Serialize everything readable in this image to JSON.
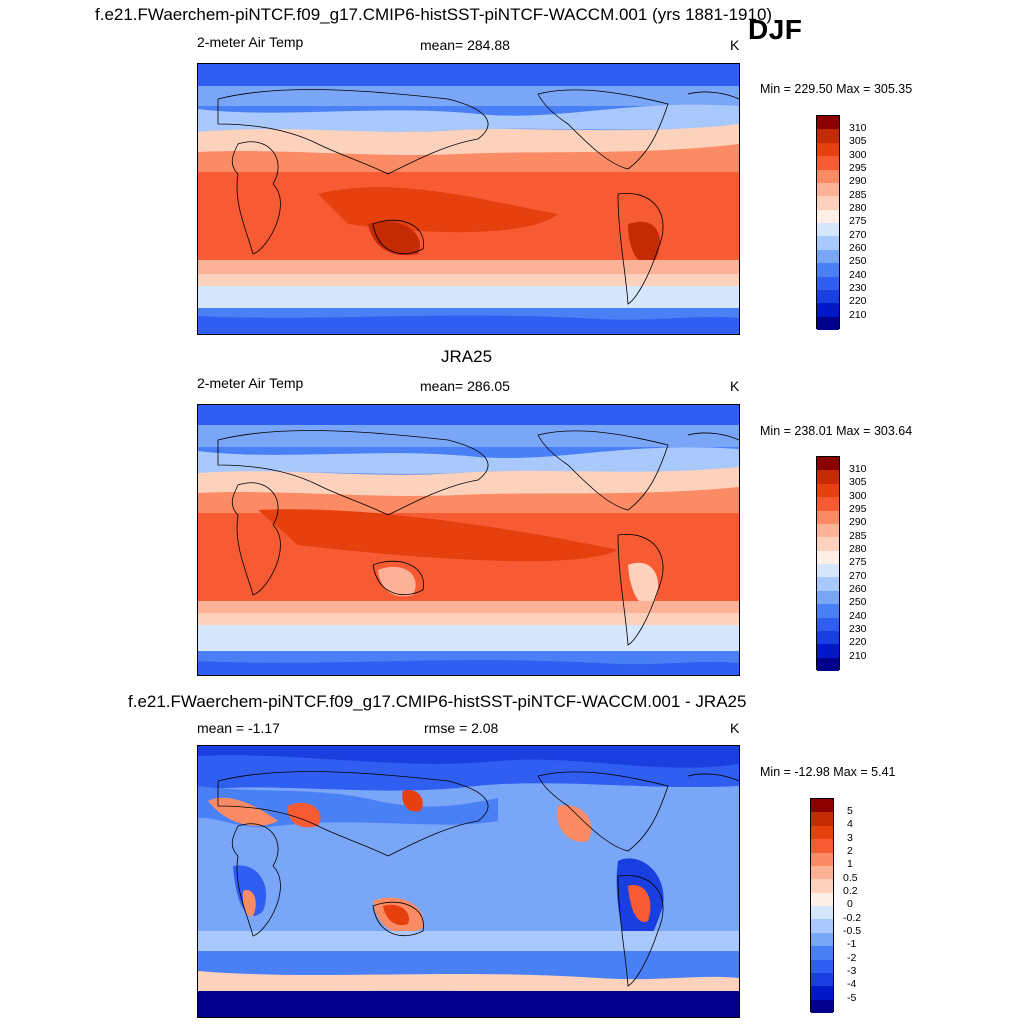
{
  "season_label": "DJF",
  "colors": {
    "temp_scale": [
      "#00008a",
      "#0018c8",
      "#1a3fe0",
      "#2f5ef0",
      "#4a80f5",
      "#7aa6f8",
      "#a9c8fb",
      "#d6e6fd",
      "#fef0e6",
      "#fdd2bd",
      "#fcb296",
      "#fa8b64",
      "#f65b34",
      "#e6400f",
      "#c42b05",
      "#8a0000"
    ],
    "diff_scale": [
      "#00008a",
      "#0018c8",
      "#1a3fe0",
      "#2f5ef0",
      "#4a80f5",
      "#7aa6f8",
      "#a9c8fb",
      "#d6e6fd",
      "#fef0e6",
      "#fdd2bd",
      "#fcb296",
      "#fa8b64",
      "#f65b34",
      "#e6400f",
      "#c42b05",
      "#8a0000"
    ]
  },
  "panels": [
    {
      "title": "f.e21.FWaerchem-piNTCF.f09_g17.CMIP6-histSST-piNTCF-WACCM.001 (yrs 1881-1910)",
      "left_label": "2-meter Air Temp",
      "center_label": "mean= 284.88",
      "units": "K",
      "minmax": "Min = 229.50 Max = 305.35",
      "colorbar_levels": [
        "310",
        "305",
        "300",
        "295",
        "290",
        "285",
        "280",
        "275",
        "270",
        "260",
        "250",
        "240",
        "230",
        "220",
        "210"
      ]
    },
    {
      "title": "JRA25",
      "left_label": "2-meter Air Temp",
      "center_label": "mean= 286.05",
      "units": "K",
      "minmax": "Min = 238.01 Max = 303.64",
      "colorbar_levels": [
        "310",
        "305",
        "300",
        "295",
        "290",
        "285",
        "280",
        "275",
        "270",
        "260",
        "250",
        "240",
        "230",
        "220",
        "210"
      ]
    },
    {
      "title": "f.e21.FWaerchem-piNTCF.f09_g17.CMIP6-histSST-piNTCF-WACCM.001 - JRA25",
      "left_label": "mean =  -1.17",
      "center_label": "rmse =   2.08",
      "units": "K",
      "minmax": "Min = -12.98 Max =   5.41",
      "colorbar_levels": [
        "5",
        "4",
        "3",
        "2",
        "1",
        "0.5",
        "0.2",
        "0",
        "-0.2",
        "-0.5",
        "-1",
        "-2",
        "-3",
        "-4",
        "-5"
      ]
    }
  ]
}
